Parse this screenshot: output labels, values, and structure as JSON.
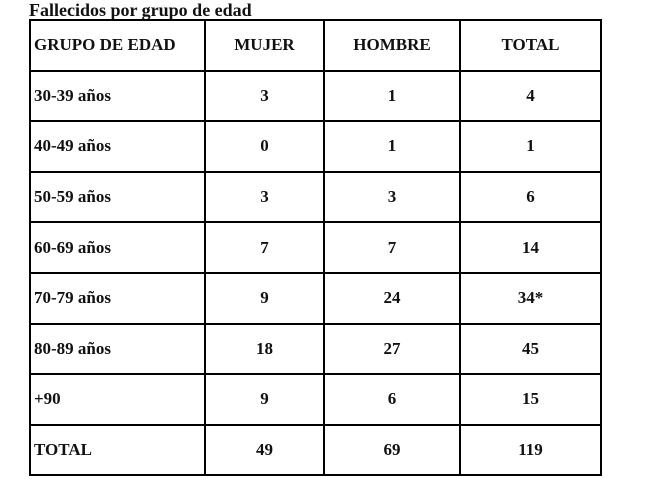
{
  "title": "Fallecidos por grupo de edad",
  "headers": [
    "GRUPO DE EDAD",
    "MUJER",
    "HOMBRE",
    "TOTAL"
  ],
  "rows": [
    [
      "30-39 años",
      "3",
      "1",
      "4"
    ],
    [
      "40-49 años",
      "0",
      "1",
      "1"
    ],
    [
      "50-59 años",
      "3",
      "3",
      "6"
    ],
    [
      "60-69 años",
      "7",
      "7",
      "14"
    ],
    [
      "70-79 años",
      "9",
      "24",
      "34*"
    ],
    [
      "80-89 años",
      "18",
      "27",
      "45"
    ],
    [
      "+90",
      "9",
      "6",
      "15"
    ],
    [
      "TOTAL",
      "49",
      "69",
      "119"
    ]
  ]
}
